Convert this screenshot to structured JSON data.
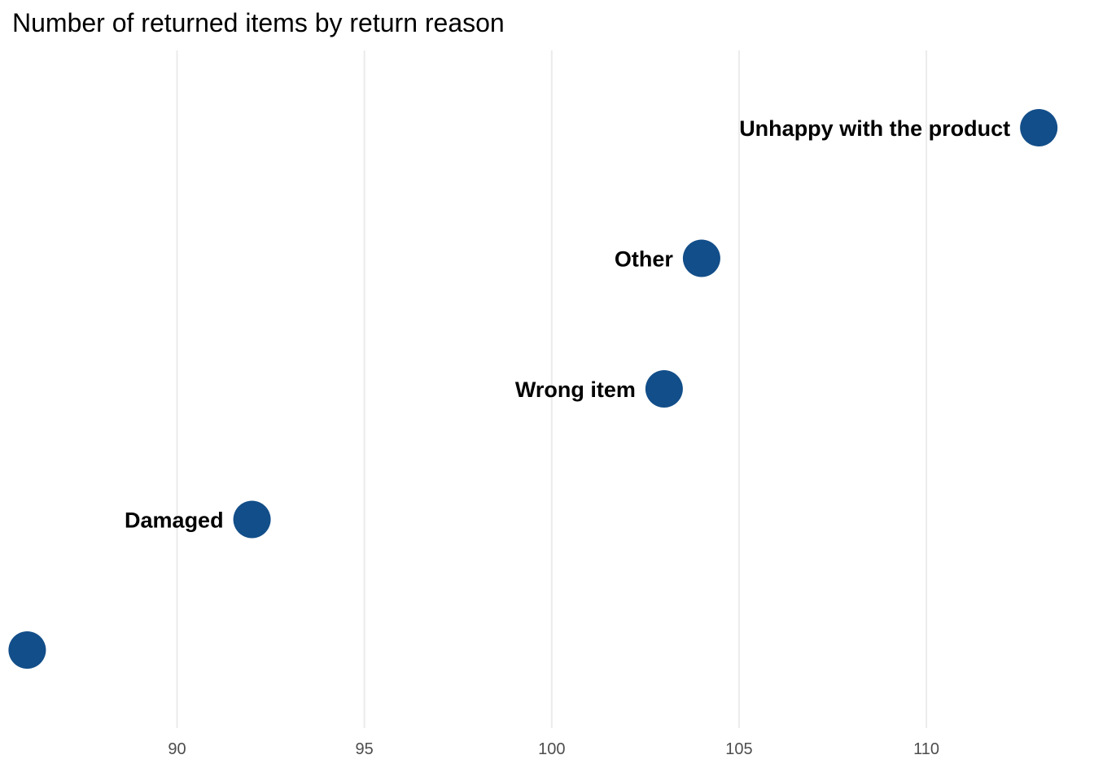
{
  "chart_data": {
    "type": "scatter",
    "title": "Number of returned items by return reason",
    "xlabel": "",
    "ylabel": "",
    "xlim": [
      85.6,
      113.8
    ],
    "x_ticks": [
      "90",
      "95",
      "100",
      "105",
      "110"
    ],
    "grid": "vertical major gridlines",
    "legend": "none",
    "point_color": "#124e89",
    "points": [
      {
        "label": "Unhappy with the product",
        "value": 113
      },
      {
        "label": "Other",
        "value": 104
      },
      {
        "label": "Wrong item",
        "value": 103
      },
      {
        "label": "Damaged",
        "value": 92
      },
      {
        "label": "",
        "value": 86
      }
    ]
  }
}
